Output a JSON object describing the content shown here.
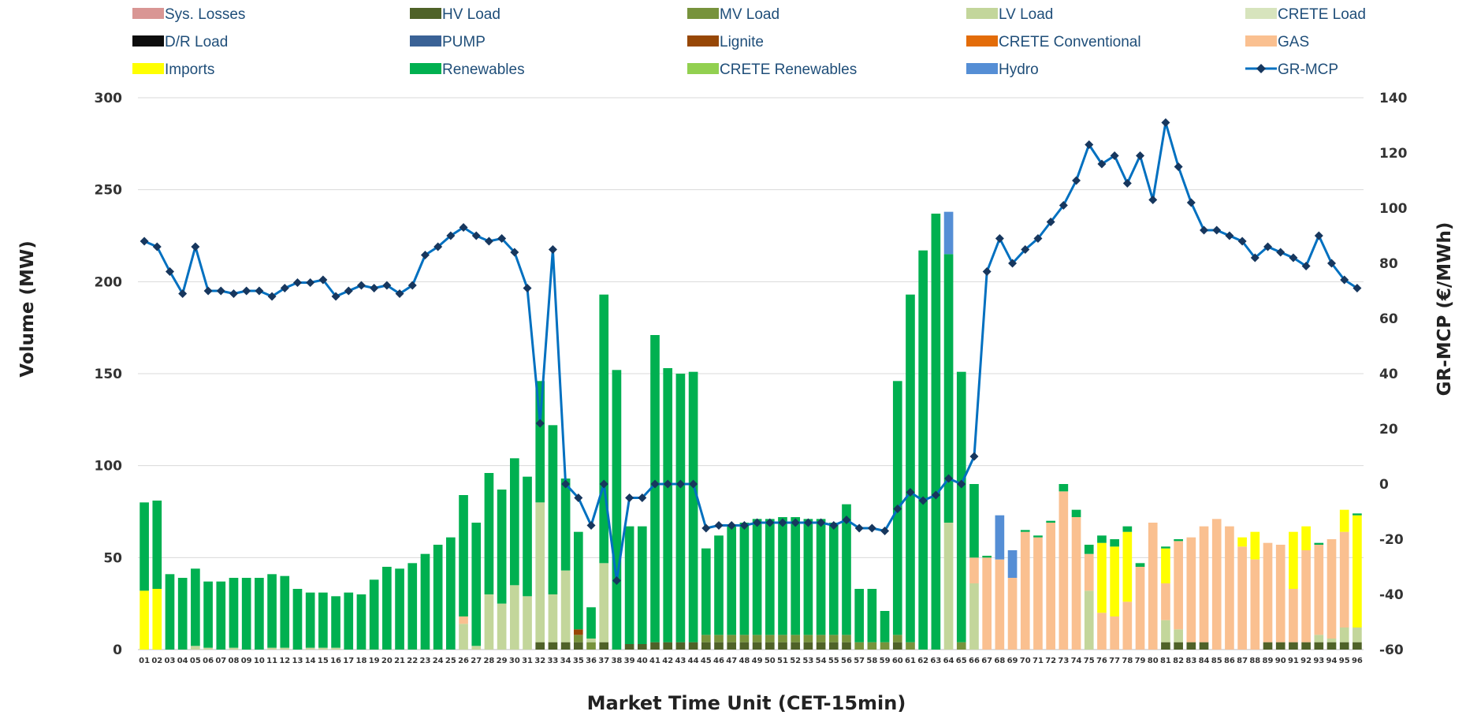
{
  "chart_data": {
    "type": "bar",
    "subtype": "stacked bar with line on secondary axis",
    "xlabel": "Market Time Unit (CET-15min)",
    "ylabel": "Volume (MW)",
    "y2label": "GR-MCP (€/MWh)",
    "ylim": [
      0,
      300
    ],
    "y2lim": [
      -60,
      140
    ],
    "yticks": [
      0,
      50,
      100,
      150,
      200,
      250,
      300
    ],
    "y2ticks": [
      -60,
      -40,
      -20,
      0,
      20,
      40,
      60,
      80,
      100,
      120,
      140
    ],
    "grid": true,
    "legend_position": "top",
    "categories": [
      "01",
      "02",
      "03",
      "04",
      "05",
      "06",
      "07",
      "08",
      "09",
      "10",
      "11",
      "12",
      "13",
      "14",
      "15",
      "16",
      "17",
      "18",
      "19",
      "20",
      "21",
      "22",
      "23",
      "24",
      "25",
      "26",
      "27",
      "28",
      "29",
      "30",
      "31",
      "32",
      "33",
      "34",
      "35",
      "36",
      "37",
      "38",
      "39",
      "40",
      "41",
      "42",
      "43",
      "44",
      "45",
      "46",
      "47",
      "48",
      "49",
      "50",
      "51",
      "52",
      "53",
      "54",
      "55",
      "56",
      "57",
      "58",
      "59",
      "60",
      "61",
      "62",
      "63",
      "64",
      "65",
      "66",
      "67",
      "68",
      "69",
      "70",
      "71",
      "72",
      "73",
      "74",
      "75",
      "76",
      "77",
      "78",
      "79",
      "80",
      "81",
      "82",
      "83",
      "84",
      "85",
      "86",
      "87",
      "88",
      "89",
      "90",
      "91",
      "92",
      "93",
      "94",
      "95",
      "96"
    ],
    "legend": [
      {
        "name": "Sys. Losses",
        "color": "#d99694",
        "kind": "bar"
      },
      {
        "name": "HV Load",
        "color": "#4f6228",
        "kind": "bar"
      },
      {
        "name": "MV Load",
        "color": "#77933c",
        "kind": "bar"
      },
      {
        "name": "LV Load",
        "color": "#c3d69b",
        "kind": "bar"
      },
      {
        "name": "CRETE Load",
        "color": "#d7e4bd",
        "kind": "bar"
      },
      {
        "name": "D/R Load",
        "color": "#0d0d0d",
        "kind": "bar"
      },
      {
        "name": "PUMP",
        "color": "#3a6296",
        "kind": "bar"
      },
      {
        "name": "Lignite",
        "color": "#974706",
        "kind": "bar"
      },
      {
        "name": "CRETE Conventional",
        "color": "#e36c09",
        "kind": "bar"
      },
      {
        "name": "GAS",
        "color": "#fac090",
        "kind": "bar"
      },
      {
        "name": "Imports",
        "color": "#ffff00",
        "kind": "bar"
      },
      {
        "name": "Renewables",
        "color": "#00b050",
        "kind": "bar"
      },
      {
        "name": "CRETE Renewables",
        "color": "#92d050",
        "kind": "bar"
      },
      {
        "name": "Hydro",
        "color": "#558ed5",
        "kind": "bar"
      },
      {
        "name": "GR-MCP",
        "color": "#0070c0",
        "kind": "line",
        "marker_color": "#17375e"
      }
    ],
    "stack_order": [
      "HV Load",
      "MV Load",
      "LV Load",
      "Lignite",
      "GAS",
      "Imports",
      "Renewables",
      "CRETE Renewables",
      "PUMP",
      "Hydro"
    ],
    "series": [
      {
        "name": "HV Load",
        "axis": "left",
        "values": [
          0,
          0,
          0,
          0,
          0,
          0,
          0,
          0,
          0,
          0,
          0,
          0,
          0,
          0,
          0,
          0,
          0,
          0,
          0,
          0,
          0,
          0,
          0,
          0,
          0,
          0,
          0,
          0,
          0,
          0,
          0,
          4,
          4,
          4,
          4,
          0,
          4,
          0,
          3,
          3,
          4,
          4,
          4,
          4,
          4,
          4,
          4,
          4,
          4,
          4,
          4,
          4,
          4,
          4,
          4,
          4,
          0,
          0,
          0,
          4,
          0,
          0,
          0,
          0,
          0,
          0,
          0,
          0,
          0,
          0,
          0,
          0,
          0,
          0,
          0,
          0,
          0,
          0,
          0,
          0,
          4,
          4,
          4,
          4,
          0,
          0,
          0,
          0,
          4,
          4,
          4,
          4,
          4,
          4,
          4,
          4
        ]
      },
      {
        "name": "MV Load",
        "axis": "left",
        "values": [
          0,
          0,
          0,
          0,
          0,
          0,
          0,
          0,
          0,
          0,
          0,
          0,
          0,
          0,
          0,
          0,
          0,
          0,
          0,
          0,
          0,
          0,
          0,
          0,
          0,
          0,
          0,
          0,
          0,
          0,
          0,
          0,
          0,
          0,
          4,
          4,
          0,
          0,
          0,
          0,
          0,
          0,
          0,
          0,
          4,
          4,
          4,
          4,
          4,
          4,
          4,
          4,
          4,
          4,
          4,
          4,
          4,
          4,
          4,
          4,
          4,
          0,
          0,
          0,
          4,
          0,
          0,
          0,
          0,
          0,
          0,
          0,
          0,
          0,
          0,
          0,
          0,
          0,
          0,
          0,
          0,
          0,
          0,
          0,
          0,
          0,
          0,
          0,
          0,
          0,
          0,
          0,
          0,
          0,
          0,
          0
        ]
      },
      {
        "name": "LV Load",
        "axis": "left",
        "values": [
          0,
          0,
          0,
          0,
          2,
          1,
          0,
          1,
          0,
          0,
          1,
          1,
          0,
          1,
          1,
          1,
          0,
          0,
          0,
          0,
          0,
          0,
          0,
          0,
          0,
          14,
          2,
          30,
          25,
          35,
          29,
          76,
          26,
          39,
          0,
          2,
          43,
          0,
          0,
          0,
          0,
          0,
          0,
          0,
          0,
          0,
          0,
          0,
          0,
          0,
          0,
          0,
          0,
          0,
          0,
          0,
          0,
          0,
          0,
          0,
          0,
          0,
          0,
          69,
          0,
          36,
          0,
          0,
          0,
          0,
          0,
          0,
          0,
          0,
          32,
          0,
          0,
          0,
          0,
          0,
          12,
          7,
          0,
          0,
          0,
          0,
          0,
          0,
          0,
          0,
          0,
          0,
          4,
          2,
          8,
          8
        ]
      },
      {
        "name": "Lignite",
        "axis": "left",
        "values": [
          0,
          0,
          0,
          0,
          0,
          0,
          0,
          0,
          0,
          0,
          0,
          0,
          0,
          0,
          0,
          0,
          0,
          0,
          0,
          0,
          0,
          0,
          0,
          0,
          0,
          0,
          0,
          0,
          0,
          0,
          0,
          0,
          0,
          0,
          3,
          0,
          0,
          0,
          0,
          0,
          0,
          0,
          0,
          0,
          0,
          0,
          0,
          0,
          0,
          0,
          0,
          0,
          0,
          0,
          0,
          0,
          0,
          0,
          0,
          0,
          0,
          0,
          0,
          0,
          0,
          0,
          0,
          0,
          0,
          0,
          0,
          0,
          0,
          0,
          0,
          0,
          0,
          0,
          0,
          0,
          0,
          0,
          0,
          0,
          0,
          0,
          0,
          0,
          0,
          0,
          0,
          0,
          0,
          0,
          0,
          0
        ]
      },
      {
        "name": "GAS",
        "axis": "left",
        "values": [
          0,
          0,
          0,
          0,
          0,
          0,
          0,
          0,
          0,
          0,
          0,
          0,
          0,
          0,
          0,
          0,
          0,
          0,
          0,
          0,
          0,
          0,
          0,
          0,
          0,
          4,
          0,
          0,
          0,
          0,
          0,
          0,
          0,
          0,
          0,
          0,
          0,
          0,
          0,
          0,
          0,
          0,
          0,
          0,
          0,
          0,
          0,
          0,
          0,
          0,
          0,
          0,
          0,
          0,
          0,
          0,
          0,
          0,
          0,
          0,
          0,
          0,
          0,
          0,
          0,
          14,
          50,
          49,
          39,
          64,
          61,
          69,
          86,
          72,
          20,
          20,
          18,
          26,
          45,
          69,
          20,
          48,
          57,
          63,
          71,
          67,
          56,
          49,
          54,
          53,
          29,
          50,
          49,
          54,
          52,
          0
        ]
      },
      {
        "name": "Imports",
        "axis": "left",
        "values": [
          32,
          33,
          0,
          0,
          0,
          0,
          0,
          0,
          0,
          0,
          0,
          0,
          0,
          0,
          0,
          0,
          0,
          0,
          0,
          0,
          0,
          0,
          0,
          0,
          0,
          0,
          0,
          0,
          0,
          0,
          0,
          0,
          0,
          0,
          0,
          0,
          0,
          0,
          0,
          0,
          0,
          0,
          0,
          0,
          0,
          0,
          0,
          0,
          0,
          0,
          0,
          0,
          0,
          0,
          0,
          0,
          0,
          0,
          0,
          0,
          0,
          0,
          0,
          0,
          0,
          0,
          0,
          0,
          0,
          0,
          0,
          0,
          0,
          0,
          0,
          38,
          38,
          38,
          0,
          0,
          19,
          0,
          0,
          0,
          0,
          0,
          5,
          15,
          0,
          0,
          31,
          13,
          0,
          0,
          12,
          61
        ]
      },
      {
        "name": "Renewables",
        "axis": "left",
        "values": [
          48,
          48,
          41,
          39,
          42,
          36,
          37,
          38,
          39,
          39,
          40,
          39,
          33,
          30,
          30,
          28,
          31,
          30,
          38,
          45,
          44,
          47,
          52,
          57,
          61,
          66,
          67,
          66,
          62,
          69,
          65,
          66,
          92,
          50,
          53,
          17,
          146,
          152,
          64,
          64,
          167,
          149,
          146,
          147,
          47,
          54,
          59,
          61,
          63,
          63,
          64,
          64,
          63,
          63,
          61,
          71,
          29,
          29,
          17,
          138,
          189,
          217,
          237,
          146,
          147,
          40,
          1,
          0,
          0,
          1,
          1,
          1,
          4,
          4,
          5,
          4,
          4,
          3,
          2,
          0,
          1,
          1,
          0,
          0,
          0,
          0,
          0,
          0,
          0,
          0,
          0,
          0,
          1,
          0,
          0,
          1
        ]
      },
      {
        "name": "Hydro",
        "axis": "left",
        "values": [
          0,
          0,
          0,
          0,
          0,
          0,
          0,
          0,
          0,
          0,
          0,
          0,
          0,
          0,
          0,
          0,
          0,
          0,
          0,
          0,
          0,
          0,
          0,
          0,
          0,
          0,
          0,
          0,
          0,
          0,
          0,
          0,
          0,
          0,
          0,
          0,
          0,
          0,
          0,
          0,
          0,
          0,
          0,
          0,
          0,
          0,
          0,
          0,
          0,
          0,
          0,
          0,
          0,
          0,
          0,
          0,
          0,
          0,
          0,
          0,
          0,
          0,
          0,
          23,
          0,
          0,
          0,
          24,
          15,
          0,
          0,
          0,
          0,
          0,
          0,
          0,
          0,
          0,
          0,
          0,
          0,
          0,
          0,
          0,
          0,
          0,
          0,
          0,
          0,
          0,
          0,
          0,
          0,
          0,
          0,
          0
        ]
      },
      {
        "name": "GR-MCP",
        "axis": "right",
        "values": [
          88,
          86,
          77,
          69,
          86,
          70,
          70,
          69,
          70,
          70,
          68,
          71,
          73,
          73,
          74,
          68,
          70,
          72,
          71,
          72,
          69,
          72,
          83,
          86,
          90,
          93,
          90,
          88,
          89,
          84,
          71,
          22,
          85,
          0,
          -5,
          -15,
          0,
          -35,
          -5,
          -5,
          0,
          0,
          0,
          0,
          -16,
          -15,
          -15,
          -15,
          -14,
          -14,
          -14,
          -14,
          -14,
          -14,
          -15,
          -13,
          -16,
          -16,
          -17,
          -9,
          -3,
          -6,
          -4,
          2,
          0,
          10,
          77,
          89,
          80,
          85,
          89,
          95,
          101,
          110,
          123,
          116,
          119,
          109,
          119,
          103,
          131,
          115,
          102,
          92,
          92,
          90,
          88,
          82,
          86,
          84,
          82,
          79,
          90,
          80,
          74,
          71
        ]
      }
    ]
  }
}
